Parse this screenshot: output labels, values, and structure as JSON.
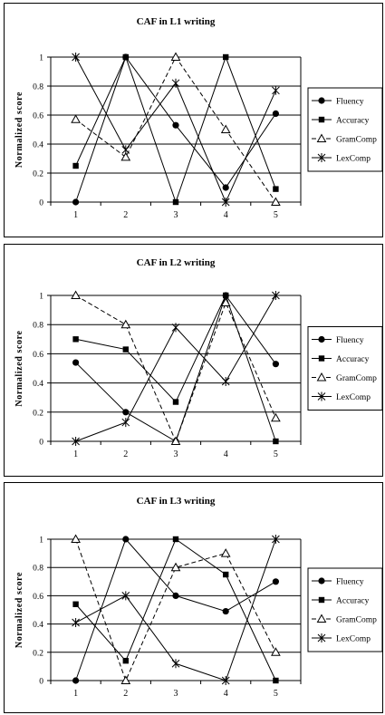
{
  "chart_data": [
    {
      "type": "line",
      "title": "CAF in L1 writing",
      "xlabel": "",
      "ylabel": "Normalized score",
      "categories": [
        "1",
        "2",
        "3",
        "4",
        "5"
      ],
      "ylim": [
        0,
        1
      ],
      "yticks": [
        "0",
        "0.2",
        "0.4",
        "0.6",
        "0.8",
        "1"
      ],
      "grid": true,
      "legend": "right",
      "series": [
        {
          "name": "Fluency",
          "values": [
            0.0,
            1.0,
            0.53,
            0.1,
            0.61
          ]
        },
        {
          "name": "Accuracy",
          "values": [
            0.25,
            1.0,
            0.0,
            1.0,
            0.09
          ]
        },
        {
          "name": "GramComp",
          "values": [
            0.57,
            0.31,
            1.0,
            0.5,
            0.0
          ]
        },
        {
          "name": "LexComp",
          "values": [
            1.0,
            0.36,
            0.82,
            0.0,
            0.77
          ]
        }
      ]
    },
    {
      "type": "line",
      "title": "CAF in L2 writing",
      "xlabel": "",
      "ylabel": "Normalized score",
      "categories": [
        "1",
        "2",
        "3",
        "4",
        "5"
      ],
      "ylim": [
        0,
        1
      ],
      "yticks": [
        "0",
        "0.2",
        "0.4",
        "0.6",
        "0.8",
        "1"
      ],
      "grid": true,
      "legend": "right",
      "series": [
        {
          "name": "Fluency",
          "values": [
            0.54,
            0.2,
            0.0,
            1.0,
            0.53
          ]
        },
        {
          "name": "Accuracy",
          "values": [
            0.7,
            0.63,
            0.27,
            1.0,
            0.0
          ]
        },
        {
          "name": "GramComp",
          "values": [
            1.0,
            0.8,
            0.0,
            0.95,
            0.16
          ]
        },
        {
          "name": "LexComp",
          "values": [
            0.0,
            0.13,
            0.78,
            0.41,
            1.0
          ]
        }
      ]
    },
    {
      "type": "line",
      "title": "CAF in L3 writing",
      "xlabel": "",
      "ylabel": "Normalized score",
      "categories": [
        "1",
        "2",
        "3",
        "4",
        "5"
      ],
      "ylim": [
        0,
        1
      ],
      "yticks": [
        "0",
        "0.2",
        "0.4",
        "0.6",
        "0.8",
        "1"
      ],
      "grid": true,
      "legend": "right",
      "series": [
        {
          "name": "Fluency",
          "values": [
            0.0,
            1.0,
            0.6,
            0.49,
            0.7
          ]
        },
        {
          "name": "Accuracy",
          "values": [
            0.54,
            0.14,
            1.0,
            0.75,
            0.0
          ]
        },
        {
          "name": "GramComp",
          "values": [
            1.0,
            0.0,
            0.8,
            0.9,
            0.2
          ]
        },
        {
          "name": "LexComp",
          "values": [
            0.41,
            0.6,
            0.12,
            0.0,
            1.0
          ]
        }
      ]
    }
  ]
}
